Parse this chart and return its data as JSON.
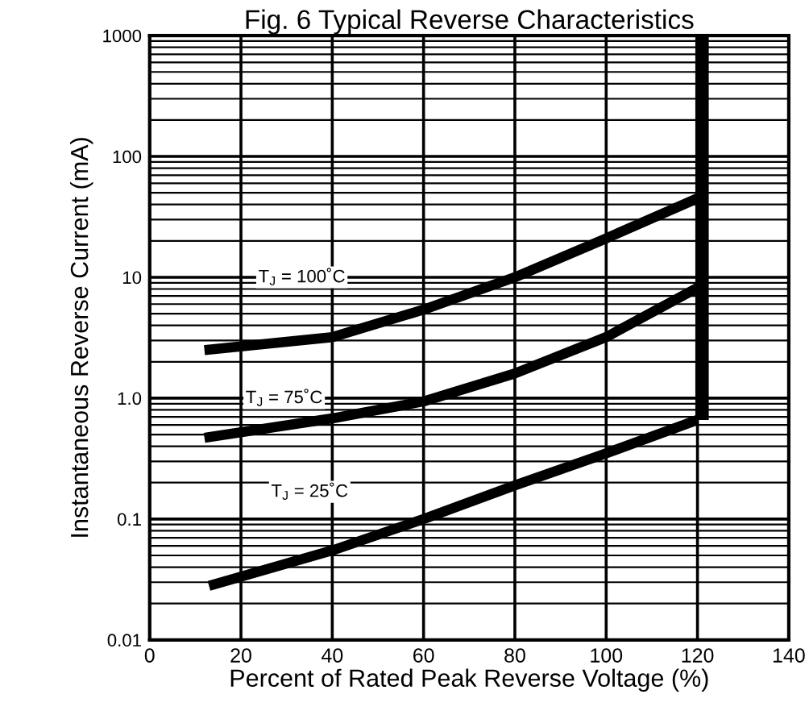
{
  "chart_data": {
    "type": "line",
    "title": "Fig. 6 Typical Reverse Characteristics",
    "xlabel": "Percent of Rated Peak Reverse Voltage (%)",
    "ylabel": "Instantaneous Reverse Current (mA)",
    "log": "y",
    "xlim": [
      0,
      140
    ],
    "xticks": [
      0,
      20,
      40,
      60,
      80,
      100,
      120,
      140
    ],
    "ylim": [
      0.01,
      1000
    ],
    "yticks": [
      0.01,
      0.1,
      {
        "value": 1,
        "label": "1.0"
      },
      10,
      100,
      1000
    ],
    "grid": true,
    "legend": false,
    "marker": "none",
    "line_style": "solid",
    "series": [
      {
        "color": "#000000",
        "x": [
          12,
          40,
          60,
          80,
          100,
          120
        ],
        "values": [
          2.5,
          3.2,
          5.4,
          10,
          21,
          45
        ]
      },
      {
        "color": "#000000",
        "x": [
          12,
          40,
          60,
          80,
          100,
          120
        ],
        "values": [
          0.47,
          0.68,
          0.94,
          1.6,
          3.2,
          8.2
        ]
      },
      {
        "color": "#000000",
        "x": [
          13,
          40,
          60,
          80,
          100,
          120
        ],
        "values": [
          0.028,
          0.055,
          0.1,
          0.19,
          0.35,
          0.66
        ]
      },
      {
        "color": "#000000",
        "x": [
          121,
          121
        ],
        "values": [
          0.66,
          1000
        ]
      }
    ],
    "annotations": [
      "T$_{J}$ = 100˚C",
      "T$_{J}$ = 75˚C",
      "T$_{J}$ = 25˚C"
    ]
  }
}
